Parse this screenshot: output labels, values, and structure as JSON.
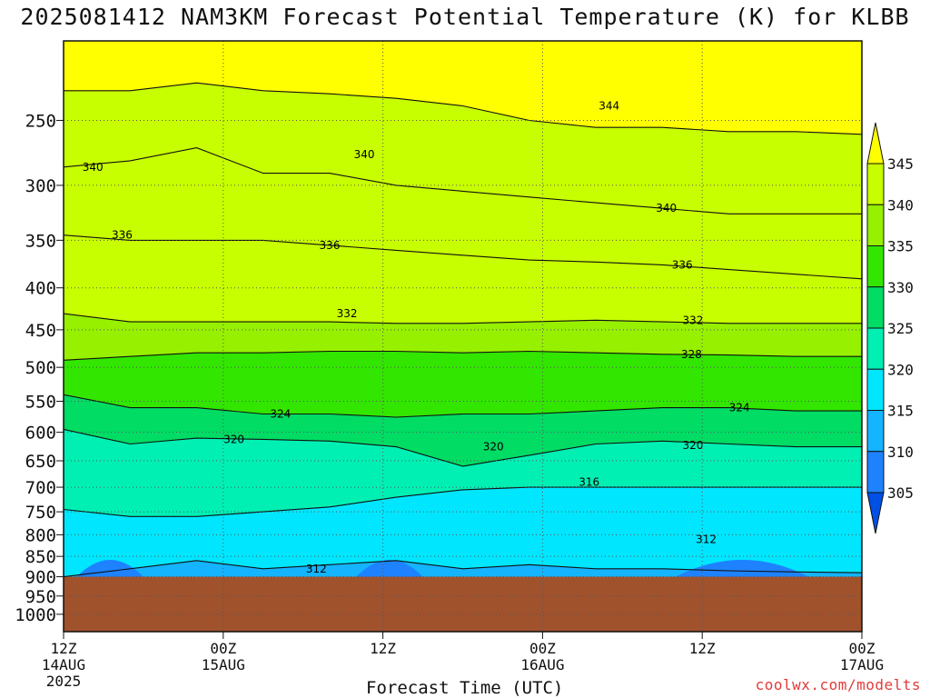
{
  "title": "2025081412 NAM3KM Forecast Potential Temperature (K) for KLBB",
  "credit": "coolwx.com/modelts",
  "chart_data": {
    "type": "contour",
    "title": "2025081412 NAM3KM Forecast Potential Temperature (K) for KLBB",
    "xlabel": "Forecast Time (UTC)",
    "ylabel": "",
    "y_scale": "log",
    "y_inverted": true,
    "ylim": [
      1050,
      200
    ],
    "y_ticks": [
      250,
      300,
      350,
      400,
      450,
      500,
      550,
      600,
      650,
      700,
      750,
      800,
      850,
      900,
      950,
      1000
    ],
    "x_ticks": [
      {
        "hours": 0,
        "label": "12Z",
        "sub": "14AUG",
        "sub2": "2025"
      },
      {
        "hours": 12,
        "label": "00Z",
        "sub": "15AUG",
        "sub2": ""
      },
      {
        "hours": 24,
        "label": "12Z",
        "sub": "",
        "sub2": ""
      },
      {
        "hours": 36,
        "label": "00Z",
        "sub": "16AUG",
        "sub2": ""
      },
      {
        "hours": 48,
        "label": "12Z",
        "sub": "",
        "sub2": ""
      },
      {
        "hours": 60,
        "label": "00Z",
        "sub": "17AUG",
        "sub2": ""
      }
    ],
    "surface_pressure": 900,
    "colorbar": {
      "levels": [
        "305",
        "310",
        "315",
        "320",
        "325",
        "330",
        "335",
        "340",
        "345"
      ],
      "colors": [
        "#0050e6",
        "#1e82ff",
        "#14b4ff",
        "#00e6ff",
        "#00f0b4",
        "#00dc64",
        "#32e600",
        "#96f000",
        "#c8ff00",
        "#ffff00"
      ]
    },
    "contour_lines": [
      {
        "value": 312,
        "label": "312",
        "p": [
          900,
          880,
          860,
          880,
          870,
          860,
          880,
          870,
          880,
          880,
          885,
          888,
          890
        ]
      },
      {
        "value": 316,
        "label": "316",
        "p": [
          745,
          760,
          760,
          750,
          740,
          720,
          705,
          700,
          700,
          700,
          700,
          700,
          700
        ]
      },
      {
        "value": 320,
        "label": "320",
        "p": [
          595,
          620,
          610,
          612,
          615,
          625,
          660,
          640,
          620,
          615,
          620,
          625,
          625
        ]
      },
      {
        "value": 324,
        "label": "324",
        "p": [
          540,
          560,
          560,
          570,
          570,
          575,
          570,
          570,
          565,
          560,
          560,
          565,
          565
        ]
      },
      {
        "value": 328,
        "label": "328",
        "p": [
          490,
          485,
          480,
          480,
          478,
          478,
          480,
          478,
          480,
          482,
          483,
          485,
          485
        ]
      },
      {
        "value": 332,
        "label": "332",
        "p": [
          430,
          440,
          440,
          440,
          440,
          442,
          442,
          440,
          438,
          440,
          442,
          442,
          442
        ]
      },
      {
        "value": 336,
        "label": "336",
        "p": [
          345,
          350,
          350,
          350,
          355,
          360,
          365,
          370,
          372,
          375,
          380,
          385,
          390
        ]
      },
      {
        "value": 340,
        "label": "340",
        "p": [
          285,
          280,
          270,
          290,
          290,
          300,
          305,
          310,
          315,
          320,
          325,
          325,
          325
        ]
      },
      {
        "value": 344,
        "label": "344",
        "p": [
          230,
          230,
          225,
          230,
          232,
          235,
          240,
          250,
          255,
          255,
          258,
          258,
          260
        ]
      }
    ],
    "contour_labels": [
      {
        "text": "340",
        "hours": 2.2,
        "p": 285
      },
      {
        "text": "340",
        "hours": 22.6,
        "p": 275
      },
      {
        "text": "344",
        "hours": 41.0,
        "p": 240
      },
      {
        "text": "336",
        "hours": 4.4,
        "p": 345
      },
      {
        "text": "336",
        "hours": 20.0,
        "p": 355
      },
      {
        "text": "340",
        "hours": 45.3,
        "p": 320
      },
      {
        "text": "336",
        "hours": 46.5,
        "p": 375
      },
      {
        "text": "332",
        "hours": 21.3,
        "p": 430
      },
      {
        "text": "332",
        "hours": 47.3,
        "p": 438
      },
      {
        "text": "328",
        "hours": 47.2,
        "p": 482
      },
      {
        "text": "324",
        "hours": 16.3,
        "p": 570
      },
      {
        "text": "324",
        "hours": 50.8,
        "p": 560
      },
      {
        "text": "320",
        "hours": 12.8,
        "p": 612
      },
      {
        "text": "320",
        "hours": 32.3,
        "p": 625
      },
      {
        "text": "320",
        "hours": 47.3,
        "p": 622
      },
      {
        "text": "316",
        "hours": 39.5,
        "p": 690
      },
      {
        "text": "312",
        "hours": 19.0,
        "p": 880
      },
      {
        "text": "312",
        "hours": 48.3,
        "p": 810
      }
    ]
  }
}
